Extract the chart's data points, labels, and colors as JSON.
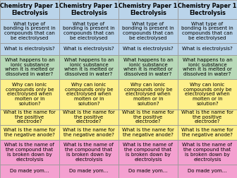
{
  "title": "Chemistry Paper 1\nElectrolysis",
  "num_cols": 4,
  "rows": [
    {
      "text": "What type of\nbonding is present in\ncompounds that can\nbe electrolysed",
      "color": "#bad4ea"
    },
    {
      "text": "What is electrolysis?",
      "color": "#bad4ea"
    },
    {
      "text": "What happens to an\nionic substance\nwhen it is melted or\ndissolved in water?",
      "color": "#b8d9b8"
    },
    {
      "text": "Why can ionic\ncompounds only be\nelectrolysed when\nmolten or in\nsolution?",
      "color": "#fef08a"
    },
    {
      "text": "What is the name for\nthe positive\nelectrode?",
      "color": "#fef08a"
    },
    {
      "text": "What is the name for\nthe negative anode?",
      "color": "#fef08a"
    },
    {
      "text": "What is the name of\nthe compound that\nis broken down by\nelectrolysis",
      "color": "#f4a0d0"
    },
    {
      "text": "Do made yom...",
      "color": "#f4a0d0"
    }
  ],
  "title_bg": "#bad4ea",
  "border_color": "#999999",
  "title_fontsize": 5.8,
  "cell_fontsize": 5.0
}
